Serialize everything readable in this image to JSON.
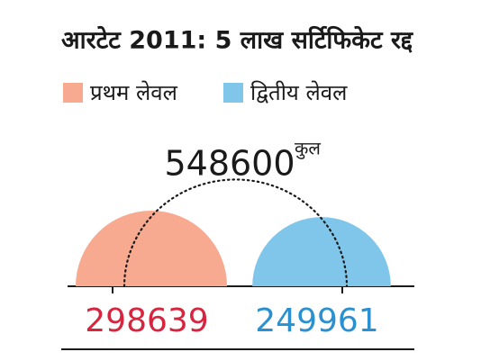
{
  "chart_data": {
    "type": "semicircle",
    "title": "आरटेट 2011: 5 लाख सर्टिफिकेट रद्द",
    "categories": [
      "प्रथम लेवल",
      "द्वितीय लेवल"
    ],
    "values": [
      298639,
      249961
    ],
    "colors": [
      "#f7aa8f",
      "#7fc6ea"
    ],
    "label_colors": [
      "#d6253f",
      "#2a90d0"
    ],
    "total": 548600,
    "total_label": "कुल"
  }
}
